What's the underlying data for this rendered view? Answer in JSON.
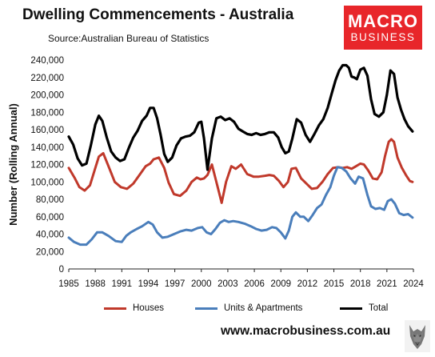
{
  "header": {
    "title": "Dwelling Commencements - Australia",
    "subtitle": "Source:Australian Bureau of Statistics"
  },
  "logo": {
    "line1": "MACRO",
    "line2": "BUSINESS"
  },
  "footer": {
    "url": "www.macrobusiness.com.au"
  },
  "colors": {
    "houses": "#c0392b",
    "units": "#4a7ebb",
    "total": "#000000",
    "logo_red": "#e8262a"
  },
  "chart_data": {
    "type": "line",
    "title": "Dwelling Commencements - Australia",
    "ylabel": "Number (Rolling Annual)",
    "xlim": [
      1985,
      2024
    ],
    "ylim": [
      0,
      240000
    ],
    "yticks": [
      0,
      20000,
      40000,
      60000,
      80000,
      100000,
      120000,
      140000,
      160000,
      180000,
      200000,
      220000,
      240000
    ],
    "ytick_labels": [
      "0",
      "20,000",
      "40,000",
      "60,000",
      "80,000",
      "100,000",
      "120,000",
      "140,000",
      "160,000",
      "180,000",
      "200,000",
      "220,000",
      "240,000"
    ],
    "xticks": [
      1985,
      1988,
      1991,
      1994,
      1997,
      2000,
      2003,
      2006,
      2009,
      2012,
      2015,
      2018,
      2021,
      2024
    ],
    "legend_position": "bottom",
    "grid": false,
    "series": [
      {
        "name": "Houses",
        "color": "#c0392b",
        "x": [
          1985,
          1985.7,
          1986.2,
          1986.8,
          1987.4,
          1988,
          1988.4,
          1988.9,
          1989.5,
          1990.2,
          1990.9,
          1991.6,
          1992.3,
          1993,
          1993.7,
          1994.2,
          1994.6,
          1995.2,
          1995.8,
          1996.3,
          1996.9,
          1997.6,
          1998.3,
          1998.9,
          1999.5,
          1999.9,
          2000.3,
          2000.7,
          2001.2,
          2001.8,
          2002.3,
          2002.8,
          2003.4,
          2003.9,
          2004.5,
          2005.2,
          2005.9,
          2006.5,
          2007.2,
          2007.7,
          2008.2,
          2008.8,
          2009.3,
          2009.8,
          2010.2,
          2010.7,
          2011.3,
          2011.9,
          2012.5,
          2013.1,
          2013.7,
          2014.3,
          2014.9,
          2015.5,
          2016,
          2016.5,
          2017,
          2017.5,
          2018,
          2018.4,
          2018.9,
          2019.4,
          2019.9,
          2020.4,
          2020.8,
          2021.2,
          2021.5,
          2021.8,
          2022.2,
          2022.7,
          2023.2,
          2023.6,
          2023.9
        ],
        "values": [
          116000,
          104000,
          94000,
          90000,
          96000,
          116000,
          129000,
          133000,
          118000,
          100000,
          94000,
          92000,
          98000,
          108000,
          118000,
          121000,
          126000,
          128000,
          116000,
          99000,
          86000,
          84000,
          90000,
          100000,
          105000,
          103000,
          104000,
          108000,
          120000,
          96000,
          76000,
          100000,
          118000,
          115000,
          120000,
          109000,
          106000,
          106000,
          107000,
          108000,
          107000,
          101000,
          94000,
          100000,
          115000,
          116000,
          104000,
          98000,
          92000,
          93000,
          100000,
          109000,
          116000,
          117000,
          116000,
          117000,
          115000,
          118000,
          121000,
          120000,
          113000,
          104000,
          103000,
          111000,
          130000,
          146000,
          149000,
          146000,
          128000,
          116000,
          107000,
          101000,
          100000
        ]
      },
      {
        "name": "Units & Apartments",
        "color": "#4a7ebb",
        "x": [
          1985,
          1985.6,
          1986.3,
          1987,
          1987.6,
          1988.2,
          1988.8,
          1989.5,
          1990.3,
          1991,
          1991.5,
          1992,
          1992.7,
          1993.3,
          1994,
          1994.5,
          1995,
          1995.6,
          1996.2,
          1996.9,
          1997.6,
          1998.3,
          1998.9,
          1999.6,
          2000.1,
          2000.6,
          2001.1,
          2001.6,
          2002.1,
          2002.6,
          2003.1,
          2003.6,
          2004.2,
          2004.9,
          2005.6,
          2006.2,
          2006.8,
          2007.4,
          2008,
          2008.5,
          2009,
          2009.5,
          2009.9,
          2010.3,
          2010.7,
          2011.2,
          2011.6,
          2012.1,
          2012.6,
          2013.1,
          2013.6,
          2014.1,
          2014.6,
          2015,
          2015.4,
          2015.9,
          2016.4,
          2016.9,
          2017.4,
          2017.8,
          2018.3,
          2018.8,
          2019.2,
          2019.7,
          2020.2,
          2020.7,
          2021.1,
          2021.5,
          2021.9,
          2022.4,
          2022.9,
          2023.4,
          2023.9
        ],
        "values": [
          36000,
          31000,
          28000,
          28000,
          34000,
          42000,
          42000,
          38000,
          32000,
          31000,
          38000,
          42000,
          46000,
          49000,
          54000,
          51000,
          42000,
          36000,
          37000,
          40000,
          43000,
          45000,
          44000,
          47000,
          48000,
          42000,
          40000,
          46000,
          53000,
          56000,
          54000,
          55000,
          54000,
          52000,
          49000,
          46000,
          44000,
          45000,
          48000,
          47000,
          42000,
          35000,
          44000,
          60000,
          65000,
          60000,
          60000,
          55000,
          62000,
          70000,
          74000,
          85000,
          94000,
          107000,
          117000,
          116000,
          112000,
          104000,
          98000,
          106000,
          104000,
          85000,
          72000,
          69000,
          70000,
          68000,
          78000,
          80000,
          75000,
          64000,
          62000,
          63000,
          59000
        ]
      },
      {
        "name": "Total",
        "color": "#000000",
        "x": [
          1985,
          1985.5,
          1986,
          1986.5,
          1987,
          1987.5,
          1988,
          1988.4,
          1988.8,
          1989.3,
          1989.8,
          1990.3,
          1990.8,
          1991.3,
          1991.8,
          1992.3,
          1992.8,
          1993.3,
          1993.8,
          1994.2,
          1994.6,
          1995,
          1995.4,
          1995.8,
          1996.2,
          1996.7,
          1997.2,
          1997.7,
          1998.2,
          1998.7,
          1999.2,
          1999.7,
          2000,
          2000.3,
          2000.7,
          2001.2,
          2001.7,
          2002.2,
          2002.7,
          2003.2,
          2003.7,
          2004.2,
          2004.7,
          2005.2,
          2005.7,
          2006.2,
          2006.7,
          2007.2,
          2007.7,
          2008.2,
          2008.7,
          2009.1,
          2009.5,
          2009.9,
          2010.3,
          2010.8,
          2011.3,
          2011.8,
          2012.3,
          2012.8,
          2013.3,
          2013.8,
          2014.3,
          2014.8,
          2015.2,
          2015.6,
          2016,
          2016.4,
          2016.7,
          2017,
          2017.3,
          2017.6,
          2018,
          2018.4,
          2018.8,
          2019.2,
          2019.6,
          2020.1,
          2020.6,
          2021,
          2021.4,
          2021.8,
          2022.2,
          2022.6,
          2023,
          2023.4,
          2023.9
        ],
        "values": [
          152000,
          143000,
          127000,
          119000,
          121000,
          142000,
          166000,
          176000,
          170000,
          151000,
          135000,
          128000,
          124000,
          126000,
          139000,
          151000,
          159000,
          170000,
          176000,
          185000,
          185000,
          173000,
          154000,
          132000,
          123000,
          128000,
          142000,
          150000,
          152000,
          153000,
          157000,
          168000,
          169000,
          150000,
          114000,
          150000,
          173000,
          175000,
          171000,
          173000,
          169000,
          161000,
          158000,
          155000,
          154000,
          156000,
          154000,
          155000,
          157000,
          157000,
          151000,
          140000,
          133000,
          135000,
          150000,
          172000,
          168000,
          154000,
          146000,
          155000,
          165000,
          172000,
          185000,
          203000,
          217000,
          228000,
          234000,
          234000,
          231000,
          221000,
          220000,
          218000,
          229000,
          231000,
          222000,
          195000,
          178000,
          175000,
          180000,
          200000,
          228000,
          224000,
          197000,
          183000,
          172000,
          164000,
          158000
        ]
      }
    ]
  }
}
